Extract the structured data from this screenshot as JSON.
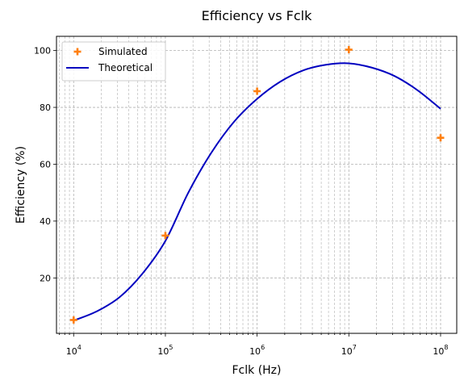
{
  "chart_data": {
    "type": "line",
    "title": "Efficiency vs Fclk",
    "xlabel": "Fclk (Hz)",
    "ylabel": "Efficiency (%)",
    "xscale": "log",
    "xlim": [
      6500,
      150000000
    ],
    "ylim": [
      0.5,
      105
    ],
    "grid": true,
    "legend_position": "top-left",
    "x_ticks": [
      10000,
      100000,
      1000000,
      10000000,
      100000000
    ],
    "x_tick_labels": [
      {
        "base": "10",
        "exp": "4"
      },
      {
        "base": "10",
        "exp": "5"
      },
      {
        "base": "10",
        "exp": "6"
      },
      {
        "base": "10",
        "exp": "7"
      },
      {
        "base": "10",
        "exp": "8"
      }
    ],
    "y_ticks": [
      20,
      40,
      60,
      80,
      100
    ],
    "y_tick_labels": [
      "20",
      "40",
      "60",
      "80",
      "100"
    ],
    "series": [
      {
        "name": "Simulated",
        "style": "marker",
        "marker": "plus",
        "color": "#ff7f0e",
        "x": [
          10000,
          100000,
          1000000,
          10000000,
          100000000
        ],
        "y": [
          5.2,
          34.9,
          85.7,
          100.3,
          69.3
        ]
      },
      {
        "name": "Theoretical",
        "style": "line",
        "color": "#0000c0",
        "x": [
          10000,
          17783,
          31623,
          56234,
          100000,
          177828,
          316228,
          562341,
          1000000,
          1778279,
          3162278,
          5623413,
          10000000,
          17782794,
          31622777,
          56234133,
          100000000
        ],
        "y": [
          5,
          8.2,
          13.2,
          21.5,
          33,
          50,
          64,
          75,
          83,
          89,
          93,
          95,
          95.5,
          94,
          91,
          86,
          79.5
        ]
      }
    ]
  }
}
